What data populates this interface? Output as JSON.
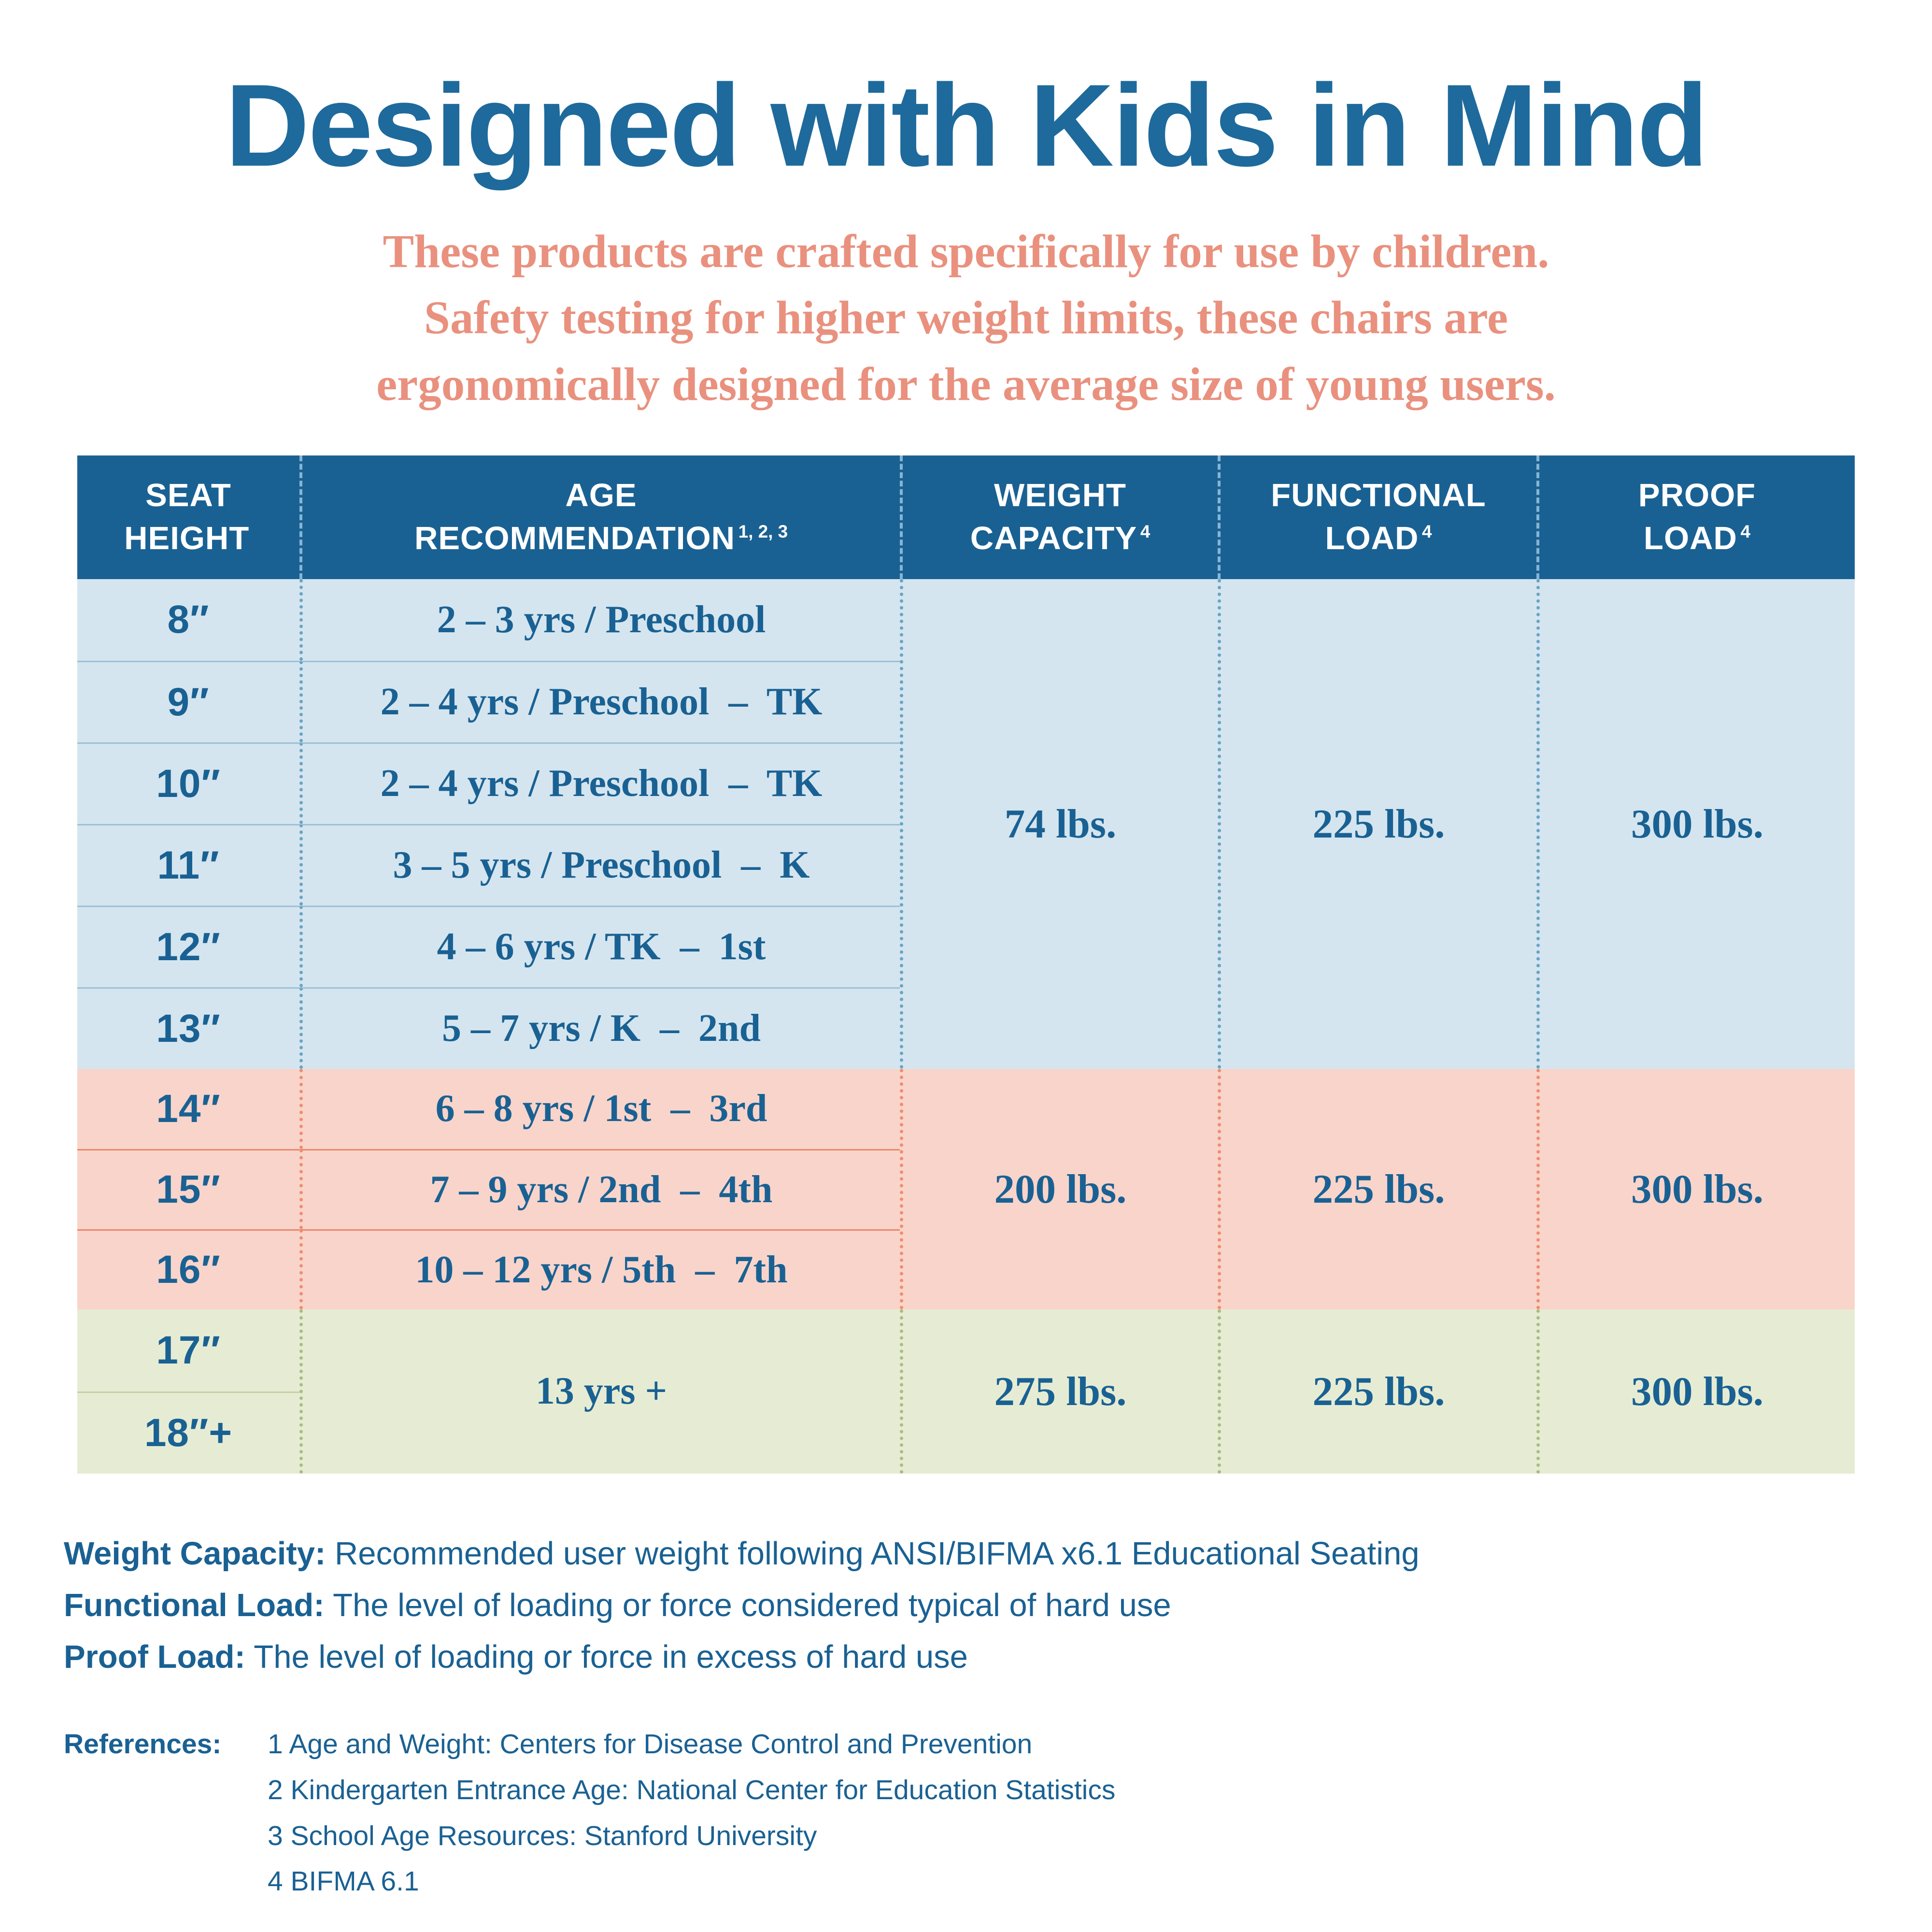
{
  "title": "Designed with Kids in Mind",
  "subtitle_lines": [
    "These products are crafted specifically for use by children.",
    "Safety testing for higher weight limits, these chairs are",
    "ergonomically designed for the average size of young users."
  ],
  "table": {
    "headers": [
      {
        "top": "SEAT",
        "bottom": "HEIGHT",
        "sup": ""
      },
      {
        "top": "AGE",
        "bottom": "RECOMMENDATION",
        "sup": "1, 2, 3"
      },
      {
        "top": "WEIGHT",
        "bottom": "CAPACITY",
        "sup": "4"
      },
      {
        "top": "FUNCTIONAL",
        "bottom": "LOAD",
        "sup": "4"
      },
      {
        "top": "PROOF",
        "bottom": "LOAD",
        "sup": "4"
      }
    ],
    "blocks": [
      {
        "theme": "blue",
        "rows": [
          {
            "seat": "8″",
            "age": "2 – 3 yrs / Preschool"
          },
          {
            "seat": "9″",
            "age": "2 – 4 yrs / Preschool  –  TK"
          },
          {
            "seat": "10″",
            "age": "2 – 4 yrs / Preschool  –  TK"
          },
          {
            "seat": "11″",
            "age": "3 – 5 yrs / Preschool  –  K"
          },
          {
            "seat": "12″",
            "age": "4 – 6 yrs / TK  –  1st"
          },
          {
            "seat": "13″",
            "age": "5 – 7 yrs / K  –  2nd"
          }
        ],
        "weight_capacity": "74 lbs.",
        "functional_load": "225 lbs.",
        "proof_load": "300 lbs."
      },
      {
        "theme": "pink",
        "rows": [
          {
            "seat": "14″",
            "age": "6 – 8 yrs / 1st  –  3rd"
          },
          {
            "seat": "15″",
            "age": "7 – 9 yrs / 2nd  –  4th"
          },
          {
            "seat": "16″",
            "age": "10 – 12 yrs / 5th  –  7th"
          }
        ],
        "weight_capacity": "200 lbs.",
        "functional_load": "225 lbs.",
        "proof_load": "300 lbs."
      },
      {
        "theme": "green",
        "rows": [
          {
            "seat": "17″"
          },
          {
            "seat": "18″+"
          }
        ],
        "age_merged": "13 yrs +",
        "weight_capacity": "275 lbs.",
        "functional_load": "225 lbs.",
        "proof_load": "300 lbs."
      }
    ]
  },
  "definitions": [
    {
      "label": "Weight Capacity:",
      "text": " Recommended user weight following ANSI/BIFMA x6.1 Educational Seating"
    },
    {
      "label": "Functional Load:",
      "text": " The level of loading or force considered typical of hard use"
    },
    {
      "label": "Proof Load:",
      "text": " The level of loading or force in excess of hard use"
    }
  ],
  "references": {
    "label": "References:",
    "items": [
      "1 Age and Weight: Centers for Disease Control and Prevention",
      "2 Kindergarten Entrance Age: National Center for Education Statistics",
      "3 School Age Resources: Stanford University",
      "4 BIFMA 6.1"
    ]
  },
  "colors": {
    "title_blue": "#1e6a9c",
    "subtitle_salmon": "#e9917e",
    "header_bg": "#1a6193",
    "header_text": "#ffffff",
    "body_text_blue": "#1a6193",
    "blue_row_bg": "#d4e5ef",
    "pink_row_bg": "#f9d4ca",
    "green_row_bg": "#e6ecd3",
    "blue_separator": "#68a4c4",
    "pink_separator": "#ee8d70",
    "green_separator": "#a8bd83",
    "header_separator": "#86b4d3"
  }
}
